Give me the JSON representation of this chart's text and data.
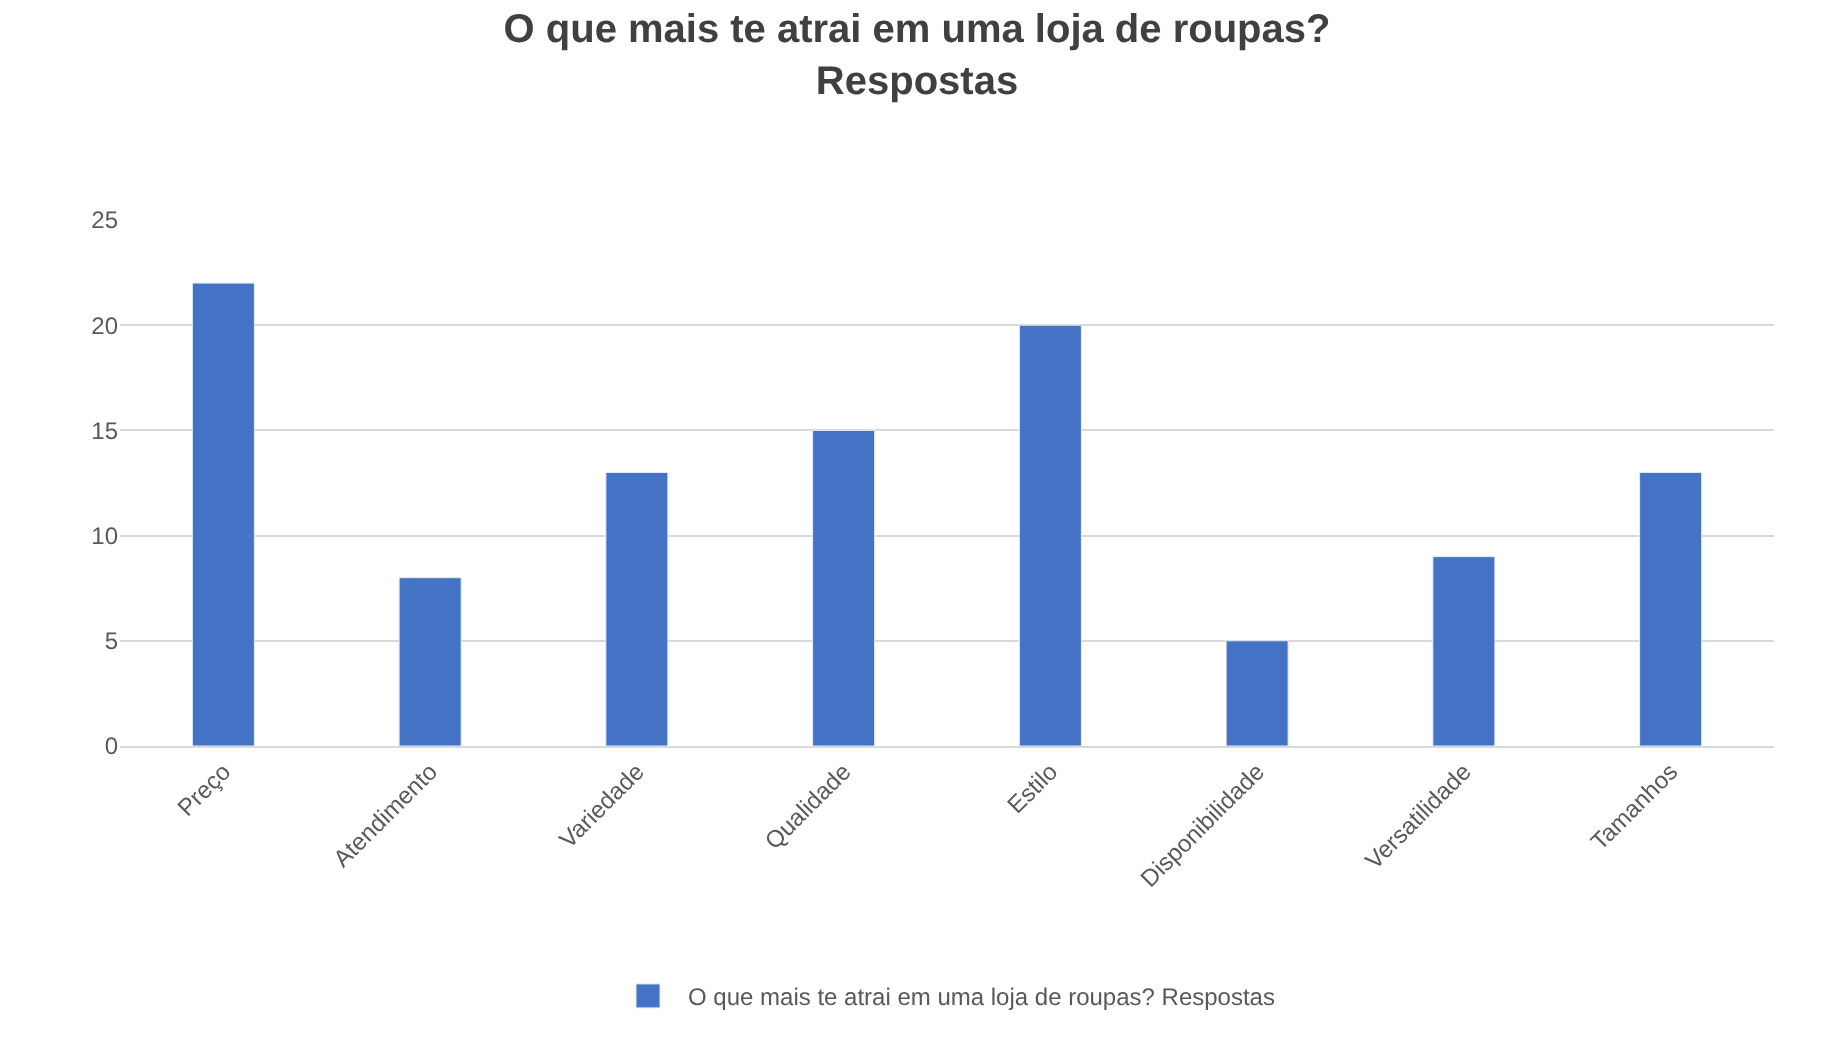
{
  "chart_data": {
    "type": "bar",
    "title": "O que mais te atrai em uma loja de roupas?\nRespostas",
    "categories": [
      "Preço",
      "Atendimento",
      "Variedade",
      "Qualidade",
      "Estilo",
      "Disponibilidade",
      "Versatilidade",
      "Tamanhos"
    ],
    "series": [
      {
        "name": "O que mais te atrai em uma loja de roupas? Respostas",
        "color": "#4472c4",
        "values": [
          22,
          8,
          13,
          15,
          20,
          5,
          9,
          13
        ]
      }
    ],
    "ylim": [
      0,
      25
    ],
    "yticks": [
      0,
      5,
      10,
      15,
      20,
      25
    ],
    "grid": "y",
    "legend": "bottom"
  }
}
